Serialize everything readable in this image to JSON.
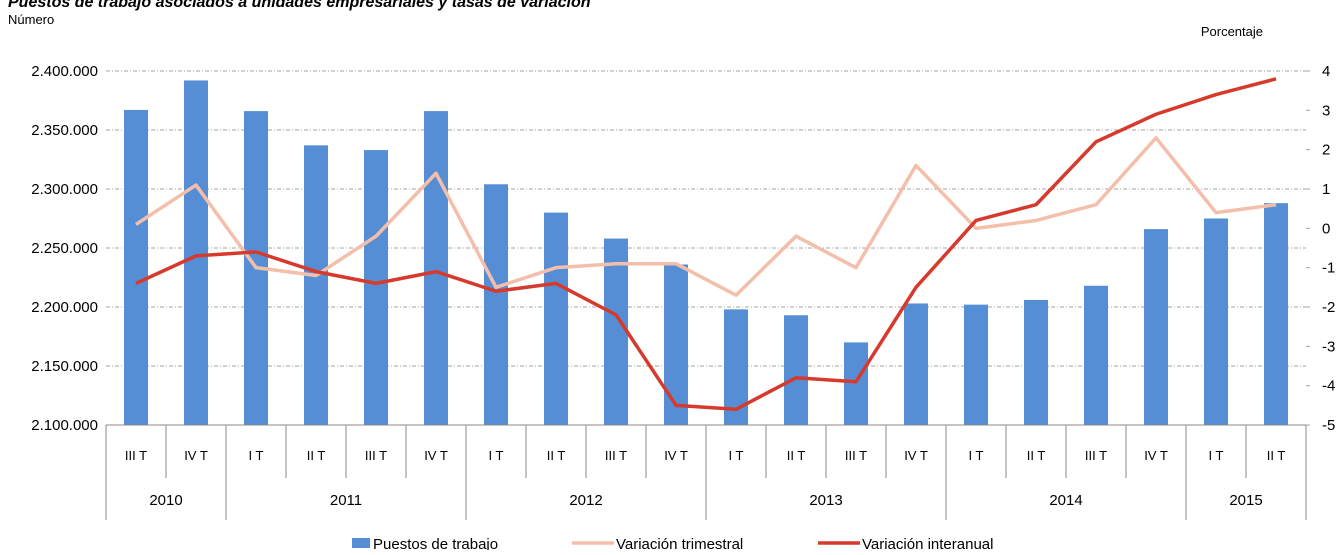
{
  "chart_data": {
    "type": "bar_line",
    "title": "Puestos de trabajo asociados a unidades empresariales y tasas de variación",
    "y_label": "Número",
    "y2_label": "Porcentaje",
    "categories": [
      "III T",
      "IV T",
      "I T",
      "II T",
      "III T",
      "IV T",
      "I T",
      "II T",
      "III T",
      "IV T",
      "I T",
      "II T",
      "III T",
      "IV T",
      "I T",
      "II T",
      "III T",
      "IV T",
      "I T",
      "II T"
    ],
    "groups": [
      {
        "label": "2010",
        "span": 2
      },
      {
        "label": "2011",
        "span": 4
      },
      {
        "label": "2012",
        "span": 4
      },
      {
        "label": "2013",
        "span": 4
      },
      {
        "label": "2014",
        "span": 4
      },
      {
        "label": "2015",
        "span": 2
      }
    ],
    "series": [
      {
        "name": "Puestos de trabajo",
        "kind": "bar",
        "color": "#558ed5",
        "values": [
          2367000,
          2392000,
          2366000,
          2337000,
          2333000,
          2366000,
          2304000,
          2280000,
          2258000,
          2236000,
          2198000,
          2193000,
          2170000,
          2203000,
          2202000,
          2206000,
          2218000,
          2266000,
          2275000,
          2288000
        ]
      },
      {
        "name": "Variación trimestral",
        "kind": "line",
        "axis": "y2",
        "color": "#f4bfaa",
        "values": [
          0.1,
          1.1,
          -1.0,
          -1.2,
          -0.2,
          1.4,
          -1.5,
          -1.0,
          -0.9,
          -0.9,
          -1.7,
          -0.2,
          -1.0,
          1.6,
          0.0,
          0.2,
          0.6,
          2.3,
          0.4,
          0.6
        ]
      },
      {
        "name": "Variación interanual",
        "kind": "line",
        "axis": "y2",
        "color": "#d63a2c",
        "values": [
          -1.4,
          -0.7,
          -0.6,
          -1.1,
          -1.4,
          -1.1,
          -1.6,
          -1.4,
          -2.2,
          -4.5,
          -4.6,
          -3.8,
          -3.9,
          -1.5,
          0.2,
          0.6,
          2.2,
          2.9,
          3.4,
          3.8
        ]
      }
    ],
    "ylim": [
      2100000,
      2400000
    ],
    "yticks": [
      {
        "value": 2100000,
        "label": "2.100.000"
      },
      {
        "value": 2150000,
        "label": "2.150.000"
      },
      {
        "value": 2200000,
        "label": "2.200.000"
      },
      {
        "value": 2250000,
        "label": "2.250.000"
      },
      {
        "value": 2300000,
        "label": "2.300.000"
      },
      {
        "value": 2350000,
        "label": "2.350.000"
      },
      {
        "value": 2400000,
        "label": "2.400.000"
      }
    ],
    "y2lim": [
      -5,
      4
    ],
    "y2ticks": [
      -5,
      -4,
      -3,
      -2,
      -1,
      0,
      1,
      2,
      3,
      4
    ],
    "grid": true,
    "legend": "bottom"
  }
}
